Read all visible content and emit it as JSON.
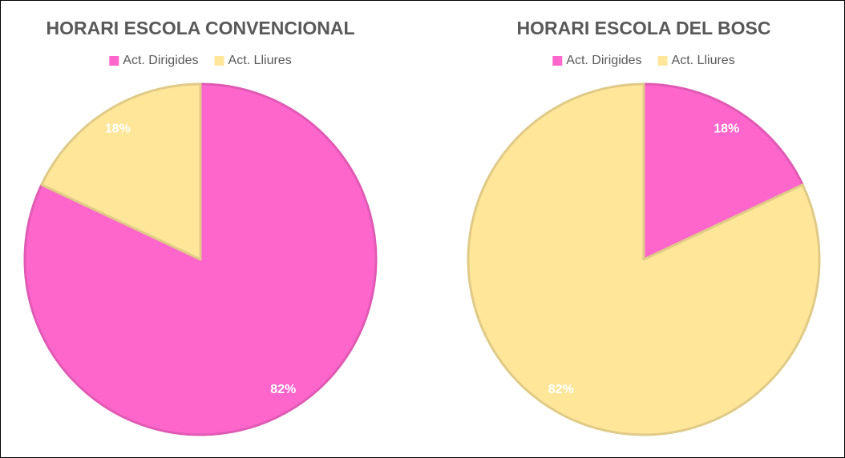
{
  "chart_data": [
    {
      "type": "pie",
      "title": "HORARI ESCOLA CONVENCIONAL",
      "categories": [
        "Act. Dirigides",
        "Act. Lliures"
      ],
      "values": [
        82,
        18
      ],
      "value_labels": [
        "82%",
        "18%"
      ],
      "colors": [
        "#ff66cc",
        "#ffe699"
      ],
      "legend": "top"
    },
    {
      "type": "pie",
      "title": "HORARI ESCOLA DEL BOSC",
      "categories": [
        "Act. Dirigides",
        "Act. Lliures"
      ],
      "values": [
        18,
        82
      ],
      "value_labels": [
        "18%",
        "82%"
      ],
      "colors": [
        "#ff66cc",
        "#ffe699"
      ],
      "legend": "top"
    }
  ]
}
